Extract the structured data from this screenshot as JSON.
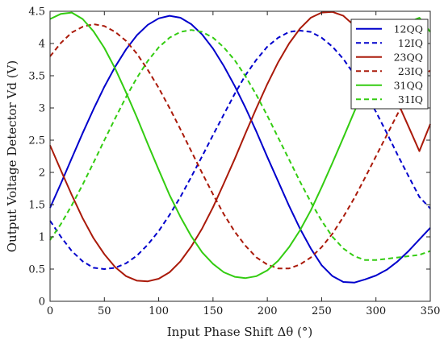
{
  "chart_data": {
    "type": "line",
    "xlabel": "Input Phase Shift Δθ (°)",
    "ylabel": "Output Voltage Detector Vd (V)",
    "xlim": [
      0,
      350
    ],
    "ylim": [
      0,
      4.5
    ],
    "xticks": [
      0,
      50,
      100,
      150,
      200,
      250,
      300,
      350
    ],
    "xtick_labels": [
      "0",
      "50",
      "100",
      "150",
      "200",
      "250",
      "300",
      "350"
    ],
    "yticks": [
      0,
      0.5,
      1,
      1.5,
      2,
      2.5,
      3,
      3.5,
      4,
      4.5
    ],
    "ytick_labels": [
      "0",
      "0.5",
      "1",
      "1.5",
      "2",
      "2.5",
      "3",
      "3.5",
      "4",
      "4.5"
    ],
    "grid": false,
    "legend_position": "top-right",
    "x": [
      0,
      10,
      20,
      30,
      40,
      50,
      60,
      70,
      80,
      90,
      100,
      110,
      120,
      130,
      140,
      150,
      160,
      170,
      180,
      190,
      200,
      210,
      220,
      230,
      240,
      250,
      260,
      270,
      280,
      290,
      300,
      310,
      320,
      330,
      340,
      350
    ],
    "series": [
      {
        "name": "12QQ",
        "color": "#0000cc",
        "dash": "solid",
        "values": [
          1.45,
          1.83,
          2.22,
          2.61,
          2.98,
          3.33,
          3.64,
          3.91,
          4.13,
          4.29,
          4.39,
          4.43,
          4.4,
          4.3,
          4.14,
          3.92,
          3.65,
          3.34,
          3.0,
          2.63,
          2.24,
          1.86,
          1.48,
          1.13,
          0.82,
          0.56,
          0.39,
          0.3,
          0.29,
          0.34,
          0.4,
          0.49,
          0.62,
          0.78,
          0.96,
          1.14
        ]
      },
      {
        "name": "12IQ",
        "color": "#0000cc",
        "dash": "dashed",
        "values": [
          1.25,
          1.0,
          0.78,
          0.62,
          0.52,
          0.5,
          0.52,
          0.59,
          0.71,
          0.88,
          1.09,
          1.34,
          1.62,
          1.93,
          2.25,
          2.58,
          2.9,
          3.22,
          3.51,
          3.75,
          3.95,
          4.09,
          4.18,
          4.2,
          4.18,
          4.09,
          3.95,
          3.76,
          3.52,
          3.24,
          2.94,
          2.61,
          2.27,
          1.94,
          1.62,
          1.44
        ]
      },
      {
        "name": "23QQ",
        "color": "#aa1a0a",
        "dash": "solid",
        "values": [
          2.42,
          2.03,
          1.65,
          1.29,
          0.98,
          0.73,
          0.53,
          0.39,
          0.32,
          0.31,
          0.35,
          0.45,
          0.62,
          0.85,
          1.13,
          1.46,
          1.83,
          2.21,
          2.61,
          3.0,
          3.37,
          3.71,
          4.0,
          4.23,
          4.4,
          4.48,
          4.49,
          4.43,
          4.28,
          4.06,
          3.78,
          3.46,
          3.09,
          2.71,
          2.33,
          2.75
        ]
      },
      {
        "name": "23IQ",
        "color": "#aa1a0a",
        "dash": "dashed",
        "values": [
          3.8,
          4.01,
          4.17,
          4.26,
          4.3,
          4.27,
          4.18,
          4.04,
          3.84,
          3.59,
          3.31,
          3.0,
          2.67,
          2.33,
          1.99,
          1.66,
          1.35,
          1.08,
          0.86,
          0.68,
          0.57,
          0.51,
          0.51,
          0.57,
          0.68,
          0.84,
          1.05,
          1.31,
          1.6,
          1.92,
          2.25,
          2.58,
          2.91,
          3.21,
          3.47,
          3.58
        ]
      },
      {
        "name": "31QQ",
        "color": "#33cc11",
        "dash": "solid",
        "values": [
          4.38,
          4.46,
          4.48,
          4.38,
          4.19,
          3.93,
          3.61,
          3.24,
          2.85,
          2.44,
          2.04,
          1.65,
          1.31,
          1.01,
          0.76,
          0.58,
          0.45,
          0.38,
          0.36,
          0.39,
          0.48,
          0.63,
          0.84,
          1.1,
          1.41,
          1.77,
          2.15,
          2.54,
          2.94,
          3.32,
          3.66,
          3.95,
          4.18,
          4.33,
          4.4,
          4.18
        ]
      },
      {
        "name": "31IQ",
        "color": "#33cc11",
        "dash": "dashed",
        "values": [
          0.95,
          1.2,
          1.49,
          1.81,
          2.15,
          2.5,
          2.84,
          3.17,
          3.47,
          3.73,
          3.94,
          4.09,
          4.18,
          4.21,
          4.18,
          4.09,
          3.94,
          3.74,
          3.49,
          3.2,
          2.88,
          2.54,
          2.2,
          1.86,
          1.54,
          1.25,
          1.0,
          0.82,
          0.7,
          0.64,
          0.64,
          0.66,
          0.68,
          0.7,
          0.72,
          0.78
        ]
      }
    ]
  }
}
